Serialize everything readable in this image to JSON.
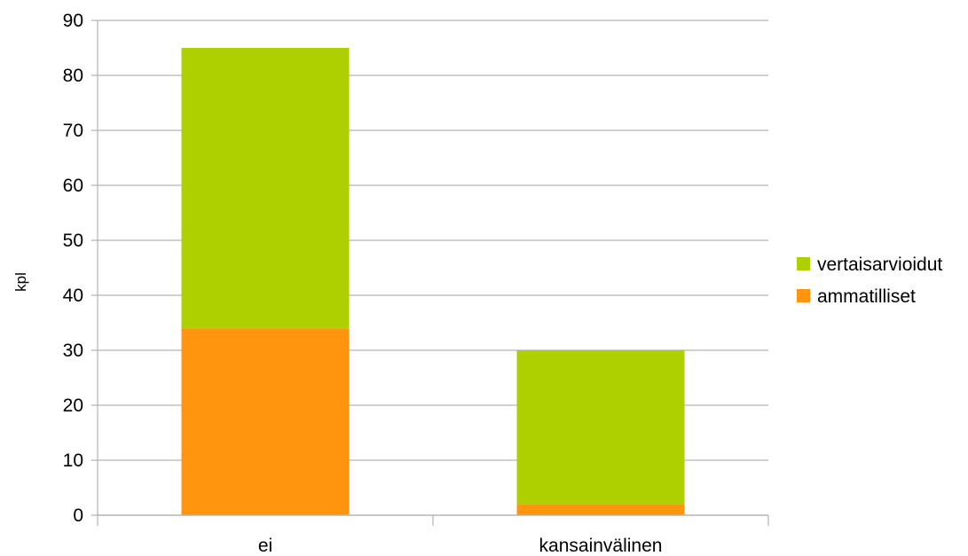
{
  "chart_data": {
    "type": "bar",
    "stacked": true,
    "categories": [
      "ei",
      "kansainvälinen"
    ],
    "series": [
      {
        "name": "ammatilliset",
        "color": "#ff950e",
        "values": [
          34,
          2
        ]
      },
      {
        "name": "vertaisarvioidut",
        "color": "#aecf00",
        "values": [
          51,
          28
        ]
      }
    ],
    "xlabel": "",
    "ylabel": "kpl",
    "ylim": [
      0,
      90
    ],
    "yticks": [
      0,
      10,
      20,
      30,
      40,
      50,
      60,
      70,
      80,
      90
    ],
    "grid": true,
    "legend_position": "right",
    "legend_order": [
      "vertaisarvioidut",
      "ammatilliset"
    ]
  }
}
